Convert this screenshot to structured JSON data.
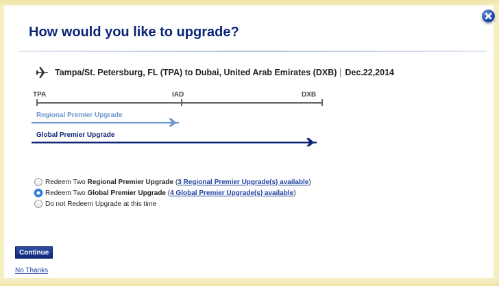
{
  "dialog": {
    "title": "How would you like to upgrade?",
    "close_icon": "close-icon"
  },
  "route": {
    "icon": "airplane-icon",
    "text": "Tampa/St. Petersburg, FL (TPA) to Dubai, United Arab Emirates (DXB)",
    "date": "Dec.22,2014"
  },
  "segments": {
    "codes": [
      "TPA",
      "IAD",
      "DXB"
    ]
  },
  "upgrades": {
    "regional_label": "Regional Premier Upgrade",
    "global_label": "Global Premier Upgrade"
  },
  "options": [
    {
      "prefix": "Redeem Two ",
      "bold": "Regional Premier Upgrade",
      "mid": " (",
      "link": "3 Regional Premier Upgrade(s) available",
      "suffix": ")",
      "checked": false
    },
    {
      "prefix": "Redeem Two ",
      "bold": "Global Premier Upgrade",
      "mid": " (",
      "link": "4 Global Premier Upgrade(s) available",
      "suffix": ")",
      "checked": true
    },
    {
      "text": "Do not Redeem Upgrade at this time",
      "checked": false
    }
  ],
  "actions": {
    "continue_label": "Continue",
    "no_thanks_label": "No Thanks"
  },
  "colors": {
    "title": "#0c2577",
    "regional": "#6d97cf",
    "global": "#0c2577",
    "segment": "#666666",
    "link": "#1c3fa0",
    "background": "#f6efc2"
  }
}
